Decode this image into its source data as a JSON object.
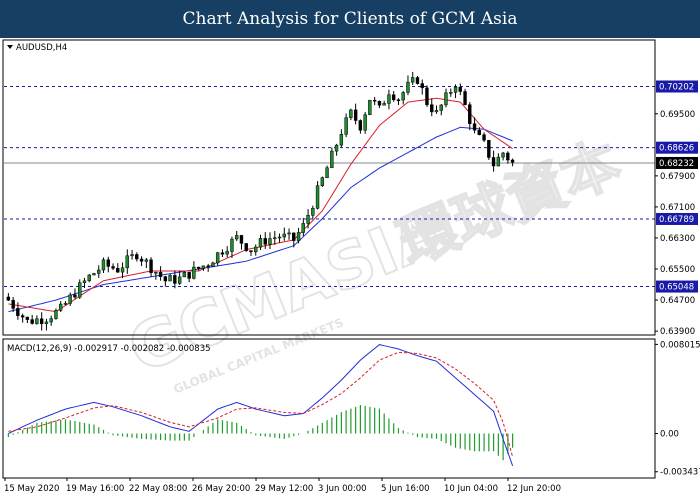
{
  "header": {
    "title": "Chart Analysis for Clients of GCM Asia"
  },
  "watermark": {
    "brand": "GCMASIA",
    "cn": "環球資本",
    "sub": "GLOBAL CAPITAL MARKETS"
  },
  "chart_data": [
    {
      "type": "candlestick",
      "symbol_label": "AUDUSD,H4",
      "ylim": [
        0.638,
        0.714
      ],
      "y_ticks": [
        "0.69500",
        "0.67900",
        "0.67100",
        "0.66300",
        "0.65500",
        "0.64700",
        "0.63900"
      ],
      "x_ticks": [
        "15 May 2020",
        "19 May 16:00",
        "22 May 08:00",
        "26 May 20:00",
        "29 May 12:00",
        "3 Jun 00:00",
        "5 Jun 16:00",
        "10 Jun 04:00",
        "12 Jun 20:00"
      ],
      "current_price": "0.68232",
      "horizontal_levels": [
        {
          "label": "0.70202",
          "value": 0.70202
        },
        {
          "label": "0.68626",
          "value": 0.68626
        },
        {
          "label": "0.66789",
          "value": 0.66789
        },
        {
          "label": "0.65048",
          "value": 0.65048
        }
      ],
      "close_path": [
        [
          0,
          0.647
        ],
        [
          4,
          0.6415
        ],
        [
          8,
          0.6425
        ],
        [
          11,
          0.6445
        ],
        [
          14,
          0.649
        ],
        [
          17,
          0.653
        ],
        [
          20,
          0.656
        ],
        [
          23,
          0.655
        ],
        [
          27,
          0.659
        ],
        [
          30,
          0.6555
        ],
        [
          33,
          0.652
        ],
        [
          36,
          0.6525
        ],
        [
          39,
          0.6545
        ],
        [
          42,
          0.6565
        ],
        [
          45,
          0.66
        ],
        [
          48,
          0.663
        ],
        [
          51,
          0.66
        ],
        [
          54,
          0.6625
        ],
        [
          57,
          0.6635
        ],
        [
          60,
          0.6625
        ],
        [
          62,
          0.666
        ],
        [
          64,
          0.672
        ],
        [
          66,
          0.678
        ],
        [
          68,
          0.684
        ],
        [
          70,
          0.6905
        ],
        [
          72,
          0.695
        ],
        [
          74,
          0.692
        ],
        [
          76,
          0.699
        ],
        [
          78,
          0.696
        ],
        [
          80,
          0.701
        ],
        [
          82,
          0.699
        ],
        [
          84,
          0.702
        ],
        [
          86,
          0.704
        ],
        [
          88,
          0.698
        ],
        [
          90,
          0.695
        ],
        [
          92,
          0.699
        ],
        [
          94,
          0.703
        ],
        [
          96,
          0.697
        ],
        [
          98,
          0.69
        ],
        [
          100,
          0.687
        ],
        [
          102,
          0.682
        ],
        [
          104,
          0.685
        ],
        [
          106,
          0.6823
        ]
      ],
      "ma_red": [
        [
          0,
          0.646
        ],
        [
          10,
          0.644
        ],
        [
          20,
          0.652
        ],
        [
          30,
          0.6545
        ],
        [
          40,
          0.6545
        ],
        [
          50,
          0.66
        ],
        [
          60,
          0.6625
        ],
        [
          66,
          0.67
        ],
        [
          72,
          0.682
        ],
        [
          78,
          0.692
        ],
        [
          84,
          0.698
        ],
        [
          90,
          0.699
        ],
        [
          95,
          0.698
        ],
        [
          100,
          0.691
        ],
        [
          106,
          0.686
        ]
      ],
      "ma_blue": [
        [
          0,
          0.644
        ],
        [
          10,
          0.647
        ],
        [
          20,
          0.651
        ],
        [
          30,
          0.653
        ],
        [
          40,
          0.655
        ],
        [
          50,
          0.657
        ],
        [
          60,
          0.661
        ],
        [
          66,
          0.668
        ],
        [
          72,
          0.676
        ],
        [
          78,
          0.681
        ],
        [
          84,
          0.685
        ],
        [
          90,
          0.689
        ],
        [
          95,
          0.6915
        ],
        [
          100,
          0.691
        ],
        [
          106,
          0.688
        ]
      ]
    },
    {
      "type": "macd",
      "label": "MACD(12,26,9) -0.002917 -0.002082 -0.000835",
      "ylim": [
        -0.004,
        0.0085
      ],
      "y_ticks": [
        {
          "label": "0.008015",
          "value": 0.008015
        },
        {
          "label": "0.00",
          "value": 0.0
        },
        {
          "label": "-0.003437",
          "value": -0.003437
        }
      ],
      "macd_line": [
        [
          0,
          0.0
        ],
        [
          6,
          0.0012
        ],
        [
          12,
          0.0022
        ],
        [
          18,
          0.0028
        ],
        [
          22,
          0.0024
        ],
        [
          28,
          0.0016
        ],
        [
          34,
          0.0006
        ],
        [
          38,
          0.0002
        ],
        [
          44,
          0.0022
        ],
        [
          48,
          0.0028
        ],
        [
          52,
          0.0022
        ],
        [
          58,
          0.0016
        ],
        [
          62,
          0.0018
        ],
        [
          66,
          0.0032
        ],
        [
          70,
          0.0048
        ],
        [
          74,
          0.0066
        ],
        [
          78,
          0.008
        ],
        [
          82,
          0.0076
        ],
        [
          86,
          0.007
        ],
        [
          90,
          0.0065
        ],
        [
          94,
          0.005
        ],
        [
          98,
          0.0035
        ],
        [
          102,
          0.002
        ],
        [
          104,
          -0.0005
        ],
        [
          106,
          -0.0029
        ]
      ],
      "signal_line": [
        [
          0,
          0.0002
        ],
        [
          6,
          0.0006
        ],
        [
          12,
          0.0014
        ],
        [
          18,
          0.0023
        ],
        [
          22,
          0.0025
        ],
        [
          28,
          0.0019
        ],
        [
          34,
          0.001
        ],
        [
          38,
          0.0006
        ],
        [
          44,
          0.0014
        ],
        [
          48,
          0.0022
        ],
        [
          52,
          0.0023
        ],
        [
          58,
          0.0019
        ],
        [
          62,
          0.0018
        ],
        [
          66,
          0.0026
        ],
        [
          70,
          0.0036
        ],
        [
          74,
          0.005
        ],
        [
          78,
          0.0066
        ],
        [
          82,
          0.0073
        ],
        [
          86,
          0.0072
        ],
        [
          90,
          0.0068
        ],
        [
          94,
          0.0058
        ],
        [
          98,
          0.0045
        ],
        [
          102,
          0.003
        ],
        [
          104,
          0.001
        ],
        [
          106,
          -0.0021
        ]
      ]
    }
  ]
}
